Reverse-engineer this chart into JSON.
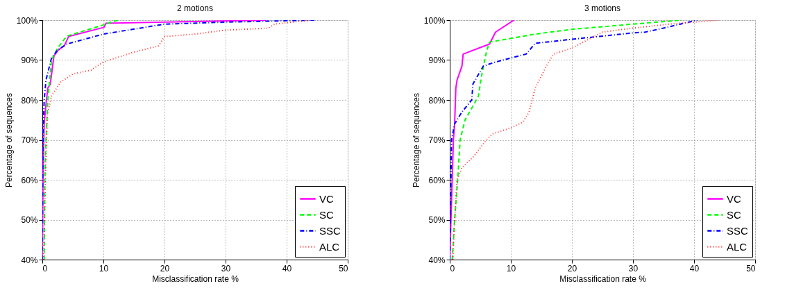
{
  "chart_data": [
    {
      "type": "line",
      "title": "2 motions",
      "xlabel": "Misclassification rate %",
      "ylabel": "Percentage of sequences",
      "xlim": [
        0,
        50
      ],
      "xticks": [
        0,
        10,
        20,
        30,
        40,
        50
      ],
      "ylim": [
        40,
        100
      ],
      "yticks": [
        {
          "value": 40,
          "label": "40%"
        },
        {
          "value": 50,
          "label": "50%"
        },
        {
          "value": 60,
          "label": "60%"
        },
        {
          "value": 70,
          "label": "70%"
        },
        {
          "value": 80,
          "label": "80%"
        },
        {
          "value": 90,
          "label": "90%"
        },
        {
          "value": 100,
          "label": "100%"
        }
      ],
      "grid": true,
      "legend": "bottom right",
      "marker": "none",
      "series": [
        {
          "name": "VC",
          "color": "#ff00ff",
          "line_style": "solid",
          "x": [
            0,
            0.1,
            0.3,
            0.6,
            0.9,
            1.3,
            1.9,
            2.6,
            3.6,
            4.3,
            10.1,
            10.4,
            20,
            36.6
          ],
          "values": [
            40,
            60,
            74,
            79,
            83,
            84,
            91,
            92.5,
            93.6,
            95.9,
            98.2,
            99.2,
            99.5,
            100
          ]
        },
        {
          "name": "SC",
          "color": "#00ff00",
          "line_style": "dashed",
          "x": [
            0.3,
            0.4,
            0.6,
            0.9,
            1.5,
            2.5,
            4,
            10,
            12.3
          ],
          "values": [
            40,
            60,
            70,
            80,
            90,
            93,
            96,
            98.8,
            100
          ]
        },
        {
          "name": "SSC",
          "color": "#0000ff",
          "line_style": "dashdot",
          "x": [
            0,
            0.1,
            0.3,
            0.6,
            1.5,
            2.5,
            4,
            10,
            20,
            30,
            44.5
          ],
          "values": [
            40,
            70,
            80,
            85,
            90.5,
            92.5,
            94,
            96.5,
            99,
            99.5,
            100
          ]
        },
        {
          "name": "ALC",
          "color": "#ff3333",
          "line_style": "dotted",
          "x": [
            0.2,
            0.5,
            0.8,
            1.5,
            3,
            5,
            8,
            10,
            12,
            15,
            19,
            20,
            25,
            30,
            37,
            38,
            44
          ],
          "values": [
            40,
            60,
            76,
            81,
            84.5,
            86.5,
            87.5,
            89.5,
            90.5,
            92,
            93.5,
            95.9,
            96.5,
            97.5,
            98,
            99,
            100
          ]
        }
      ]
    },
    {
      "type": "line",
      "title": "3 motions",
      "xlabel": "Misclassification rate %",
      "ylabel": "Percentage of sequences",
      "xlim": [
        0,
        50
      ],
      "xticks": [
        0,
        10,
        20,
        30,
        40,
        50
      ],
      "ylim": [
        40,
        100
      ],
      "yticks": [
        {
          "value": 40,
          "label": "40%"
        },
        {
          "value": 50,
          "label": "50%"
        },
        {
          "value": 60,
          "label": "60%"
        },
        {
          "value": 70,
          "label": "70%"
        },
        {
          "value": 80,
          "label": "80%"
        },
        {
          "value": 90,
          "label": "90%"
        },
        {
          "value": 100,
          "label": "100%"
        }
      ],
      "grid": true,
      "legend": "bottom right",
      "marker": "none",
      "series": [
        {
          "name": "VC",
          "color": "#ff00ff",
          "line_style": "solid",
          "x": [
            0,
            0.3,
            0.6,
            0.8,
            1,
            1.2,
            2,
            2.2,
            6.5,
            7.5,
            10.5
          ],
          "values": [
            40,
            55,
            70,
            74,
            83,
            85,
            88.5,
            91.5,
            94,
            97,
            100
          ]
        },
        {
          "name": "SC",
          "color": "#00ff00",
          "line_style": "dashed",
          "x": [
            0.4,
            0.8,
            1.3,
            1.7,
            2.5,
            4,
            4.7,
            5.2,
            6,
            6.5,
            14,
            20,
            30,
            38
          ],
          "values": [
            40,
            50,
            60,
            70,
            75,
            79,
            81,
            86,
            92,
            94.5,
            96.5,
            97.7,
            99,
            100
          ]
        },
        {
          "name": "SSC",
          "color": "#0000ff",
          "line_style": "dashdot",
          "x": [
            0,
            0.2,
            0.3,
            0.8,
            2,
            3.6,
            3.8,
            5.5,
            7.5,
            12.5,
            14,
            20,
            30,
            32,
            35,
            40.5
          ],
          "values": [
            40,
            60,
            70,
            74,
            77,
            80,
            84,
            88.5,
            89.5,
            91.5,
            94.2,
            95.2,
            96.8,
            97,
            98,
            100
          ]
        },
        {
          "name": "ALC",
          "color": "#ff3333",
          "line_style": "dotted",
          "x": [
            0.5,
            0.8,
            1.2,
            2,
            4,
            6,
            7,
            10,
            12,
            13,
            13.5,
            14,
            16,
            17,
            20,
            25,
            30,
            36,
            44
          ],
          "values": [
            40,
            50,
            60,
            63,
            66,
            70,
            71.5,
            73,
            74.5,
            77,
            80,
            83,
            89,
            91.5,
            93,
            97,
            98,
            99,
            100
          ]
        }
      ]
    }
  ]
}
